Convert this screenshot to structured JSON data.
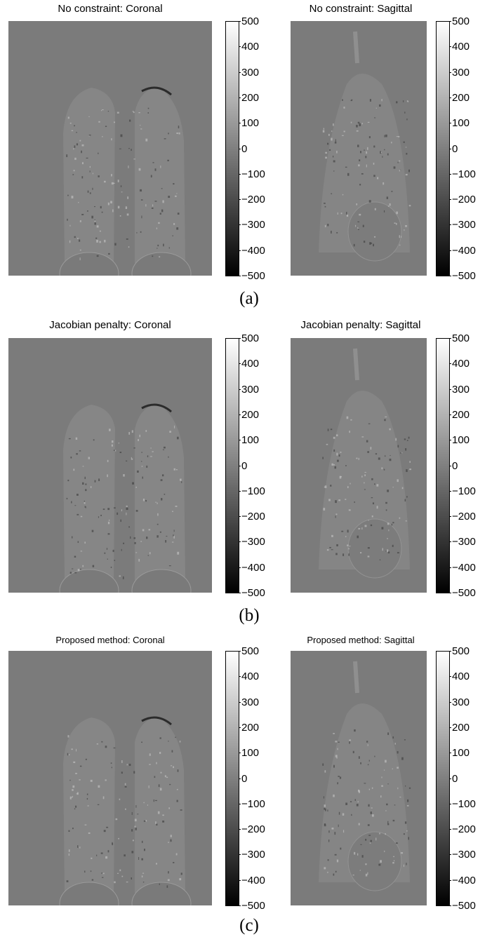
{
  "colorbar": {
    "ticks": [
      "500",
      "400",
      "300",
      "200",
      "100",
      "0",
      "−100",
      "−200",
      "−300",
      "−400",
      "−500"
    ]
  },
  "rows": [
    {
      "caption": "(a)",
      "coronal_title": "No constraint: Coronal",
      "sagittal_title": "No constraint: Sagittal"
    },
    {
      "caption": "(b)",
      "coronal_title": "Jacobian penalty: Coronal",
      "sagittal_title": "Jacobian penalty: Sagittal"
    },
    {
      "caption": "(c)",
      "coronal_title": "Proposed method: Coronal",
      "sagittal_title": "Proposed method: Sagittal"
    }
  ]
}
